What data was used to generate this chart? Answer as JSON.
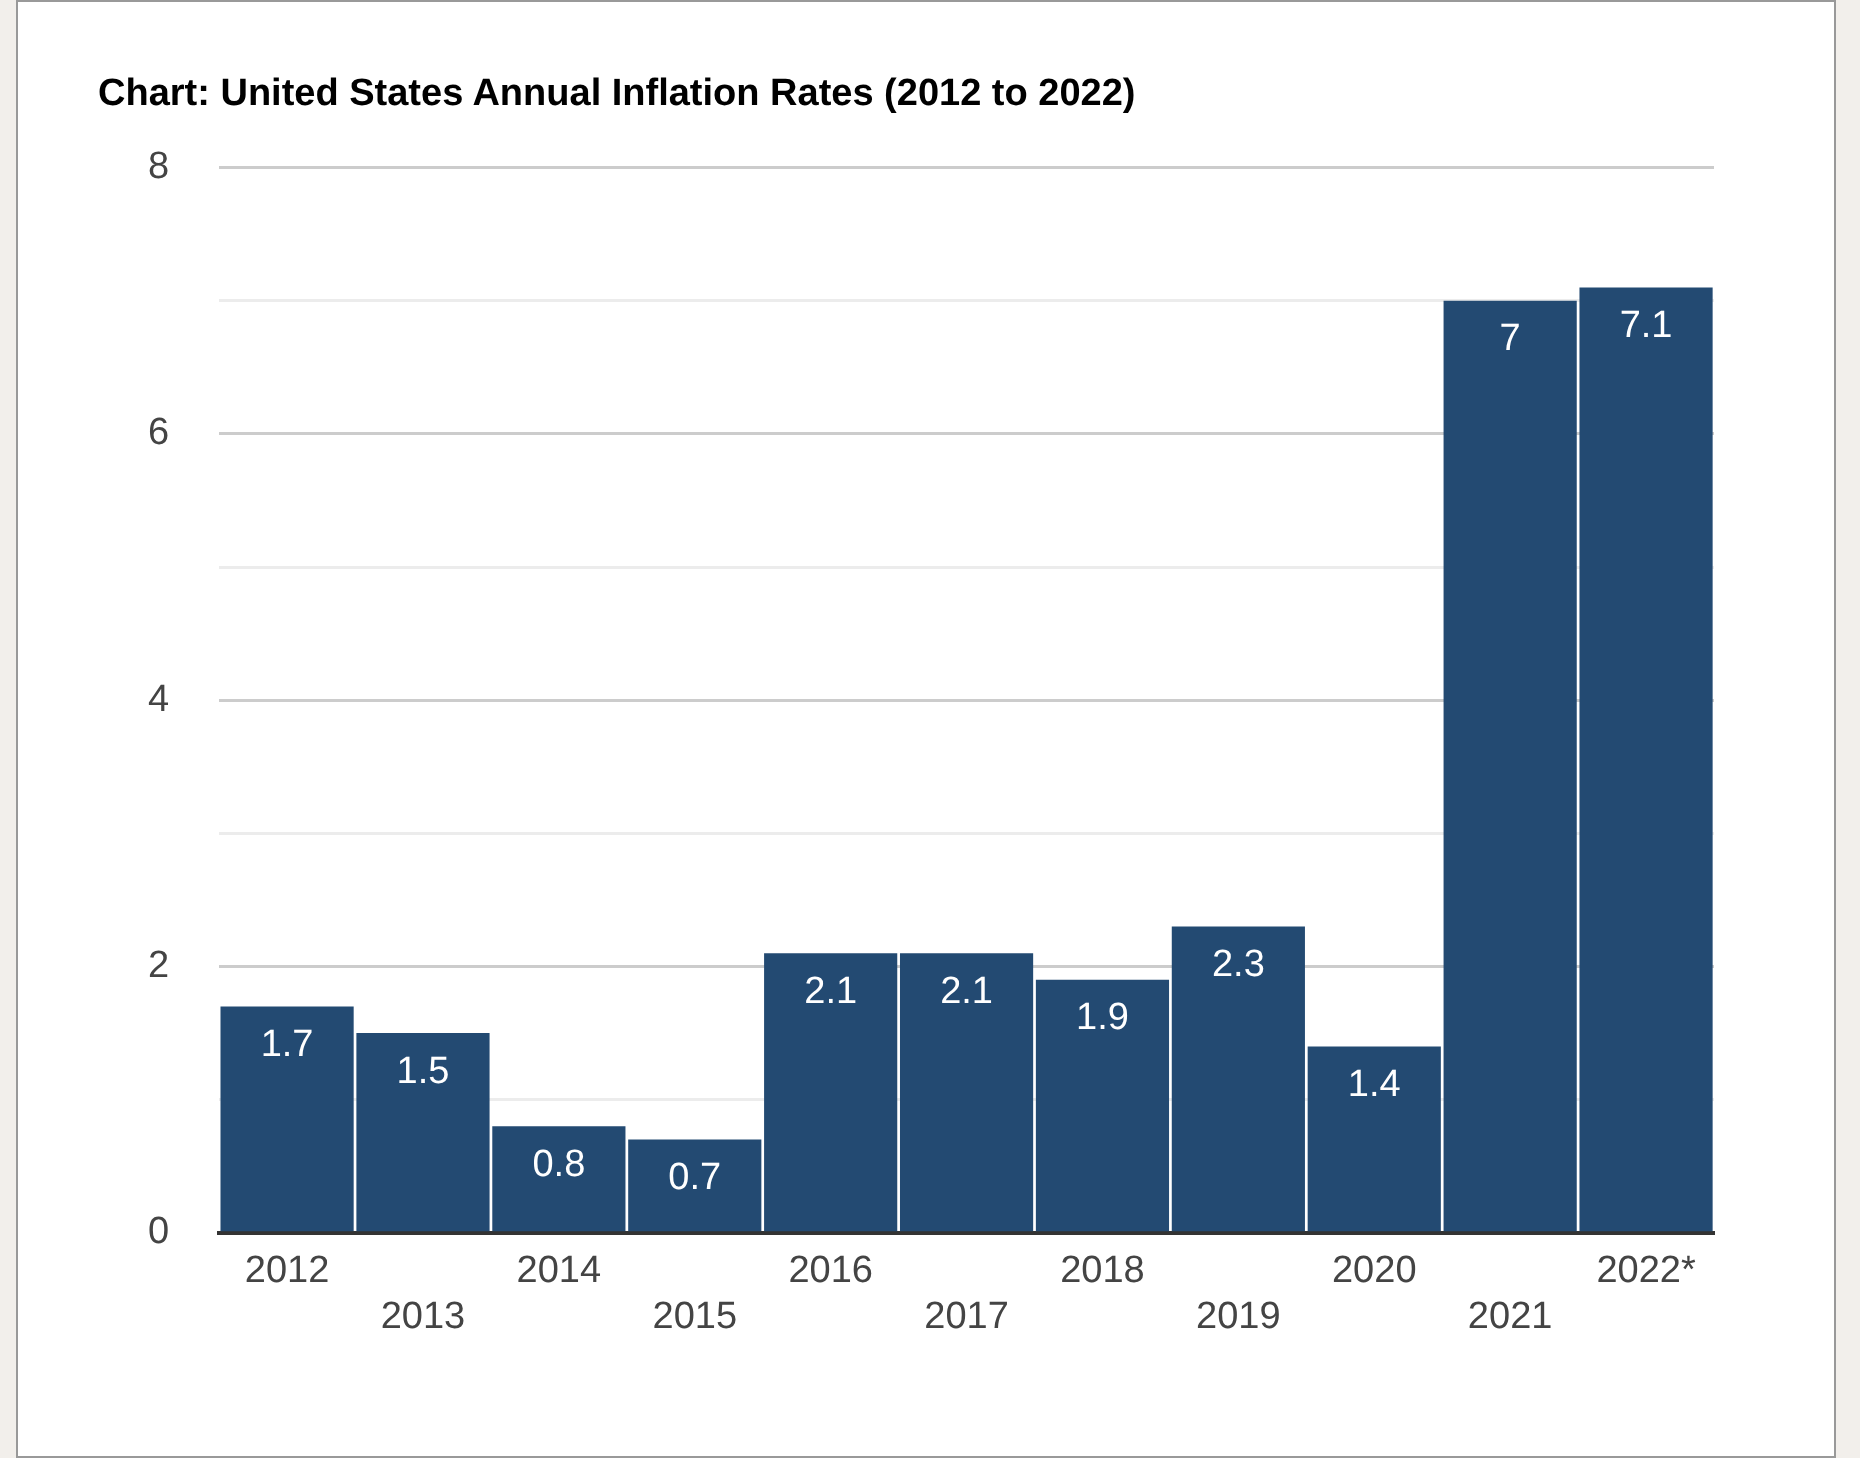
{
  "chart_data": {
    "type": "bar",
    "title": "Chart: United States Annual Inflation Rates (2012 to 2022)",
    "categories": [
      "2012",
      "2013",
      "2014",
      "2015",
      "2016",
      "2017",
      "2018",
      "2019",
      "2020",
      "2021",
      "2022*"
    ],
    "values": [
      1.7,
      1.5,
      0.8,
      0.7,
      2.1,
      2.1,
      1.9,
      2.3,
      1.4,
      7,
      7.1
    ],
    "color": "#234a72",
    "ylim": [
      0,
      8
    ],
    "yticks": [
      0,
      {
        "value": 1,
        "label": null
      },
      2,
      {
        "value": 3,
        "label": null
      },
      4,
      {
        "value": 5,
        "label": null
      },
      6,
      {
        "value": 7,
        "label": null
      },
      8
    ],
    "grid": "y",
    "legend": false,
    "data_labels": true
  }
}
